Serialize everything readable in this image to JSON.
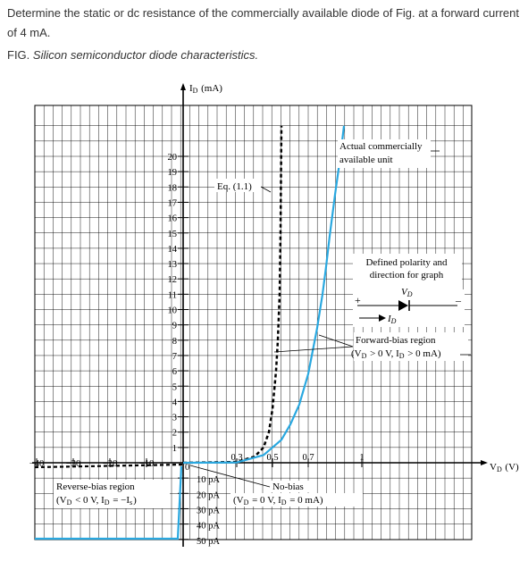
{
  "question": "Determine the static or dc resistance of the commercially available diode of Fig. at a forward current of 4 mA.",
  "figure_caption": {
    "prefix": "FIG.",
    "title": "Silicon semiconductor diode characteristics."
  },
  "chart_data": {
    "type": "line",
    "title": "",
    "xlabel": "V_D (V)",
    "ylabel": "I_D (mA)",
    "colors": {
      "actual": "#29a8e0",
      "eq": "#000000",
      "grid": "#000000"
    },
    "forward_x_ticks": [
      "0.3",
      "0.5",
      "0.7",
      "1"
    ],
    "forward_x_values": [
      0.3,
      0.5,
      0.7,
      1.0
    ],
    "reverse_x_ticks": [
      "−40",
      "−30",
      "−20",
      "−10",
      "0"
    ],
    "reverse_x_values": [
      -40,
      -30,
      -20,
      -10,
      0
    ],
    "y_ticks": [
      "20",
      "19",
      "18",
      "17",
      "16",
      "15",
      "14",
      "13",
      "12",
      "11",
      "10",
      "9",
      "8",
      "7",
      "6",
      "5",
      "4",
      "3",
      "2",
      "1"
    ],
    "y_values": [
      20,
      19,
      18,
      17,
      16,
      15,
      14,
      13,
      12,
      11,
      10,
      9,
      8,
      7,
      6,
      5,
      4,
      3,
      2,
      1
    ],
    "neg_y_ticks": [
      "10 pA",
      "20 pA",
      "30 pA",
      "40 pA",
      "50 pA"
    ],
    "neg_y_values_pA": [
      10,
      20,
      30,
      40,
      50
    ],
    "ylim_mA": [
      0,
      21.5
    ],
    "series": [
      {
        "name": "Actual commercially available unit",
        "style": "solid",
        "x": [
          0.0,
          0.3,
          0.45,
          0.55,
          0.6,
          0.65,
          0.7,
          0.72,
          0.75,
          0.78,
          0.8,
          0.82,
          0.85,
          0.88,
          0.9
        ],
        "y": [
          0.0,
          0.02,
          0.5,
          1.5,
          2.5,
          3.8,
          5.8,
          7.0,
          8.8,
          11.0,
          12.8,
          14.8,
          17.5,
          20.0,
          22.0
        ]
      },
      {
        "name": "Eq. (1.1)",
        "style": "dashed",
        "x": [
          0.0,
          0.3,
          0.4,
          0.45,
          0.48,
          0.5,
          0.52,
          0.53,
          0.54,
          0.545,
          0.55
        ],
        "y": [
          0.0,
          0.05,
          0.4,
          1.0,
          2.0,
          3.5,
          6.0,
          8.0,
          11.0,
          15.0,
          22.0
        ]
      }
    ],
    "reverse_region": {
      "name": "Reverse-bias region",
      "condition": "(V_D < 0 V, I_D = −I_s)"
    },
    "annotations": {
      "eq_label": "Eq. (1.1)",
      "actual_label_line1": "Actual commercially",
      "actual_label_line2": "available unit",
      "polarity_line1": "Defined polarity and",
      "polarity_line2": "direction for graph",
      "polarity_vd": "V_D",
      "polarity_plus": "+",
      "polarity_minus": "–",
      "polarity_id": "I_D",
      "forward_region": "Forward-bias region",
      "forward_condition": "(V_D > 0 V,  I_D > 0 mA)",
      "nobias_line1": "No-bias",
      "nobias_line2": "(V_D = 0 V, I_D = 0 mA)",
      "origin_label": "0"
    }
  }
}
